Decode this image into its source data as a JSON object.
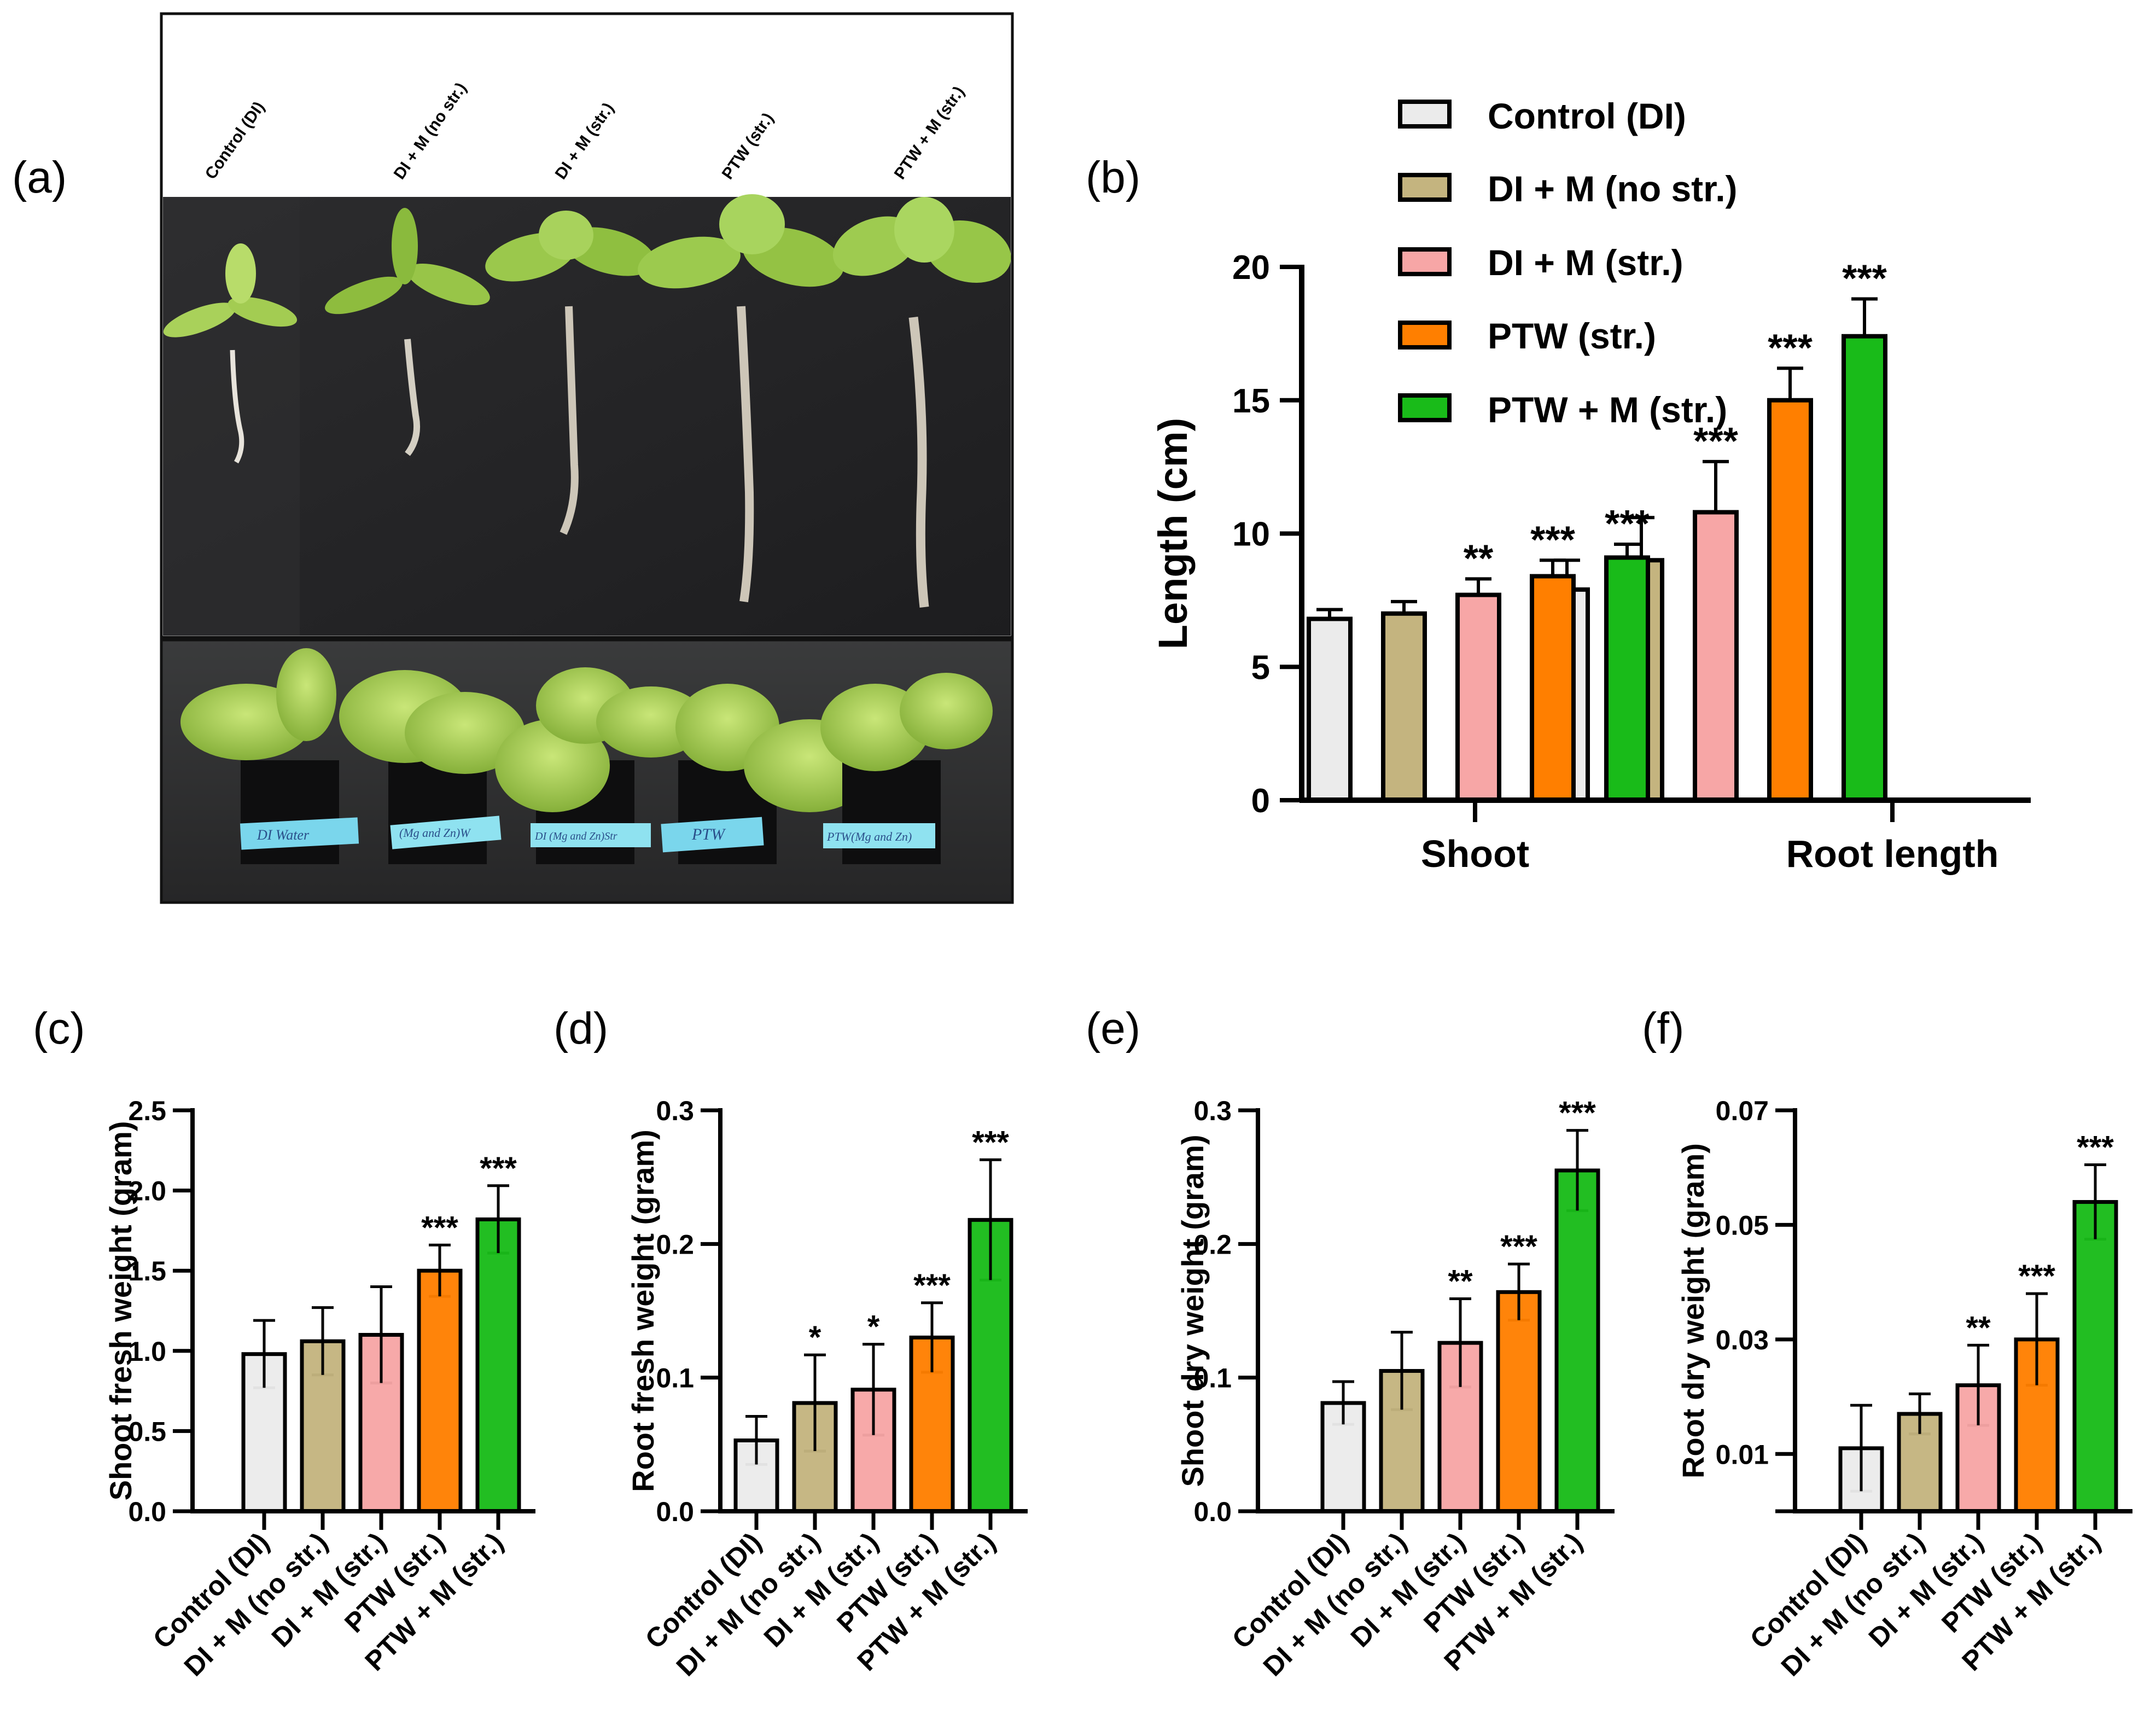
{
  "colors": {
    "control": "#ebebeb",
    "dim_no_str": "#c4b47f",
    "dim_str": "#f7a6a6",
    "ptw_str": "#ff7f00",
    "ptw_m_str": "#19bb19",
    "axis": "#000000"
  },
  "panel_a": {
    "label": "(a)",
    "column_labels": [
      "Control (DI)",
      "DI + M (no str.)",
      "DI + M (str.)",
      "PTW (str.)",
      "PTW + M (str.)"
    ],
    "pot_tags": [
      "DI Water",
      "(Mg and Zn)W",
      "DI (Mg and Zn)Str",
      "PTW",
      "PTW(Mg and Zn)"
    ]
  },
  "legend": {
    "items": [
      "Control (DI)",
      "DI + M (no str.)",
      "DI + M (str.)",
      "PTW (str.)",
      "PTW + M (str.)"
    ]
  },
  "chart_data": [
    {
      "panel": "(b)",
      "type": "bar",
      "ylabel": "Length (cm)",
      "xlabel": "",
      "ylim": [
        0,
        20
      ],
      "yticks": [
        "0",
        "5",
        "10",
        "15",
        "20"
      ],
      "categories": [
        "Shoot",
        "Root length"
      ],
      "series": [
        {
          "name": "Control (DI)",
          "values": [
            6.8,
            7.9
          ],
          "errors": [
            0.35,
            1.1
          ],
          "sig": [
            "",
            ""
          ]
        },
        {
          "name": "DI + M (no str.)",
          "values": [
            7.0,
            9.0
          ],
          "errors": [
            0.45,
            1.6
          ],
          "sig": [
            "",
            ""
          ]
        },
        {
          "name": "DI + M (str.)",
          "values": [
            7.7,
            10.8
          ],
          "errors": [
            0.6,
            1.9
          ],
          "sig": [
            "**",
            "***"
          ]
        },
        {
          "name": "PTW (str.)",
          "values": [
            8.4,
            15.0
          ],
          "errors": [
            0.6,
            1.2
          ],
          "sig": [
            "***",
            "***"
          ]
        },
        {
          "name": "PTW + M (str.)",
          "values": [
            9.1,
            17.4
          ],
          "errors": [
            0.5,
            1.4
          ],
          "sig": [
            "***",
            "***"
          ]
        }
      ]
    },
    {
      "panel": "(c)",
      "type": "bar",
      "ylabel": "Shoot fresh weight (gram)",
      "ylim": [
        0,
        2.5
      ],
      "yticks": [
        "0.0",
        "0.5",
        "1.0",
        "1.5",
        "2.0",
        "2.5"
      ],
      "categories": [
        "Control (DI)",
        "DI + M (no str.)",
        "DI + M (str.)",
        "PTW (str.)",
        "PTW + M (str.)"
      ],
      "values": [
        0.98,
        1.06,
        1.1,
        1.5,
        1.82
      ],
      "errors": [
        0.21,
        0.21,
        0.3,
        0.16,
        0.21
      ],
      "sig": [
        "",
        "",
        "",
        "***",
        "***"
      ]
    },
    {
      "panel": "(d)",
      "type": "bar",
      "ylabel": "Root fresh weight (gram)",
      "ylim": [
        0,
        0.3
      ],
      "yticks": [
        "0.0",
        "0.1",
        "0.2",
        "0.3"
      ],
      "categories": [
        "Control (DI)",
        "DI + M (no str.)",
        "DI + M (str.)",
        "PTW (str.)",
        "PTW + M (str.)"
      ],
      "values": [
        0.053,
        0.081,
        0.091,
        0.13,
        0.218
      ],
      "errors": [
        0.018,
        0.036,
        0.034,
        0.026,
        0.045
      ],
      "sig": [
        "",
        "*",
        "*",
        "***",
        "***"
      ]
    },
    {
      "panel": "(e)",
      "type": "bar",
      "ylabel": "Shoot dry weight (gram)",
      "ylim": [
        0,
        0.3
      ],
      "yticks": [
        "0.0",
        "0.1",
        "0.2",
        "0.3"
      ],
      "categories": [
        "Control (DI)",
        "DI + M (no str.)",
        "DI + M (str.)",
        "PTW (str.)",
        "PTW + M (str.)"
      ],
      "values": [
        0.081,
        0.105,
        0.126,
        0.164,
        0.255
      ],
      "errors": [
        0.016,
        0.029,
        0.033,
        0.021,
        0.03
      ],
      "sig": [
        "",
        "",
        "**",
        "***",
        "***"
      ]
    },
    {
      "panel": "(f)",
      "type": "bar",
      "ylabel": "Root dry weight (gram)",
      "ylim": [
        0,
        0.07
      ],
      "yticks": [
        "0.01",
        "0.03",
        "0.05",
        "0.07"
      ],
      "categories": [
        "Control (DI)",
        "DI + M (no str.)",
        "DI + M (str.)",
        "PTW (str.)",
        "PTW + M (str.)"
      ],
      "values": [
        0.011,
        0.017,
        0.022,
        0.03,
        0.054
      ],
      "errors": [
        0.0075,
        0.0035,
        0.007,
        0.008,
        0.0065
      ],
      "sig": [
        "",
        "",
        "**",
        "***",
        "***"
      ]
    }
  ]
}
